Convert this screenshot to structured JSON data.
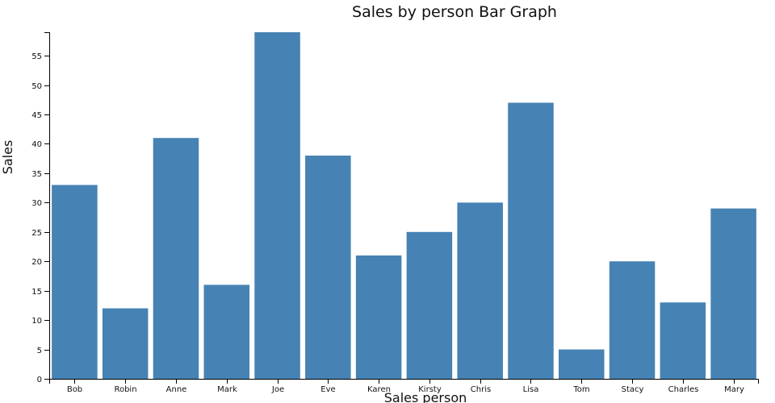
{
  "chart_data": {
    "type": "bar",
    "title": "Sales by person Bar Graph",
    "xlabel": "Sales person",
    "ylabel": "Sales",
    "categories": [
      "Bob",
      "Robin",
      "Anne",
      "Mark",
      "Joe",
      "Eve",
      "Karen",
      "Kirsty",
      "Chris",
      "Lisa",
      "Tom",
      "Stacy",
      "Charles",
      "Mary"
    ],
    "values": [
      33,
      12,
      41,
      16,
      59,
      38,
      21,
      25,
      30,
      47,
      5,
      20,
      13,
      29
    ],
    "ylim": [
      0,
      59
    ],
    "yticks": [
      0,
      5,
      10,
      15,
      20,
      25,
      30,
      35,
      40,
      45,
      50,
      55
    ],
    "grid": false,
    "legend": "none",
    "bar_color": "#4682b4"
  }
}
